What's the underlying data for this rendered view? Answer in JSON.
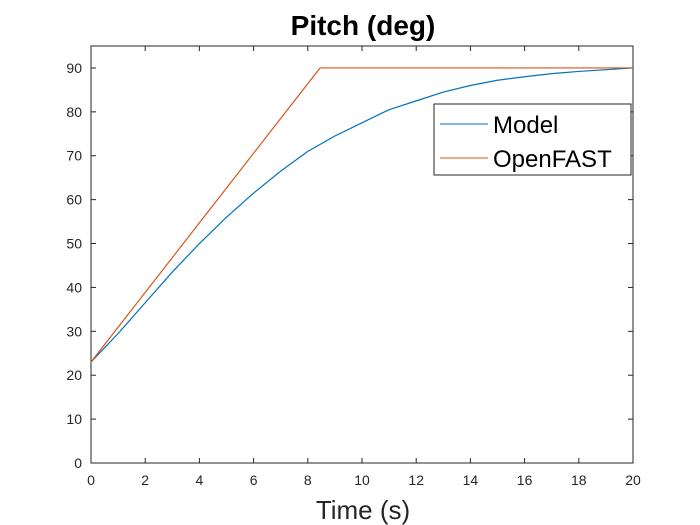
{
  "chart_data": {
    "type": "line",
    "title": "Pitch (deg)",
    "xlabel": "Time (s)",
    "ylabel": "",
    "xlim": [
      0,
      20
    ],
    "ylim": [
      0,
      95
    ],
    "xticks": [
      0,
      2,
      4,
      6,
      8,
      10,
      12,
      14,
      16,
      18,
      20
    ],
    "yticks": [
      0,
      10,
      20,
      30,
      40,
      50,
      60,
      70,
      80,
      90
    ],
    "grid": false,
    "legend_position": "top-right",
    "series": [
      {
        "name": "Model",
        "color": "#0072BD",
        "x": [
          0,
          1,
          2,
          3,
          4,
          5,
          6,
          7,
          8,
          9,
          10,
          11,
          12,
          13,
          14,
          15,
          16,
          17,
          18,
          19,
          20
        ],
        "y": [
          23,
          29.5,
          36.5,
          43.5,
          50,
          56,
          61.5,
          66.5,
          71,
          74.5,
          77.5,
          80.5,
          82.5,
          84.5,
          86,
          87.2,
          88,
          88.7,
          89.2,
          89.6,
          90
        ]
      },
      {
        "name": "OpenFAST",
        "color": "#D95319",
        "x": [
          0,
          8.45,
          20
        ],
        "y": [
          23,
          90,
          90
        ]
      }
    ]
  }
}
